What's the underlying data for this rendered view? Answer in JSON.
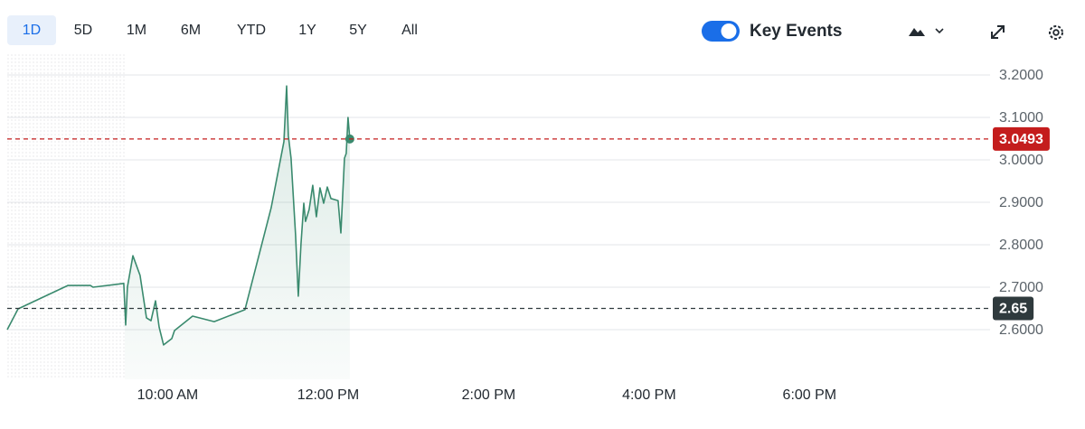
{
  "toolbar": {
    "ranges": [
      "1D",
      "5D",
      "1M",
      "6M",
      "YTD",
      "1Y",
      "5Y",
      "All"
    ],
    "selected": 0,
    "key_events": "Key Events"
  },
  "chart_data": {
    "type": "line",
    "color": "#3a8a6e",
    "x": [
      8.0,
      8.135,
      8.755,
      9.037,
      9.07,
      9.453,
      9.476,
      9.498,
      9.566,
      9.656,
      9.735,
      9.792,
      9.848,
      9.893,
      9.949,
      10.051,
      10.085,
      10.31,
      10.58,
      10.963,
      11.29,
      11.448,
      11.482,
      11.504,
      11.538,
      11.594,
      11.628,
      11.662,
      11.696,
      11.718,
      11.763,
      11.808,
      11.853,
      11.898,
      11.944,
      11.989,
      12.034,
      12.124,
      12.158,
      12.203,
      12.225,
      12.248,
      12.27
    ],
    "values": [
      2.6,
      2.649,
      2.704,
      2.704,
      2.7,
      2.709,
      2.611,
      2.7,
      2.774,
      2.728,
      2.628,
      2.621,
      2.668,
      2.606,
      2.564,
      2.579,
      2.598,
      2.632,
      2.619,
      2.647,
      2.887,
      3.043,
      3.174,
      3.057,
      3.004,
      2.823,
      2.679,
      2.802,
      2.898,
      2.855,
      2.883,
      2.94,
      2.866,
      2.934,
      2.898,
      2.936,
      2.909,
      2.904,
      2.828,
      3.004,
      3.015,
      3.1,
      3.0493
    ],
    "xlim": [
      8.0,
      20.25
    ],
    "ylim": [
      2.483,
      3.249
    ],
    "xticks": [
      {
        "value": 10,
        "label": "10:00 AM"
      },
      {
        "value": 12,
        "label": "12:00 PM"
      },
      {
        "value": 14,
        "label": "2:00 PM"
      },
      {
        "value": 16,
        "label": "4:00 PM"
      },
      {
        "value": 18,
        "label": "6:00 PM"
      }
    ],
    "yticks": [
      {
        "value": 2.6,
        "label": "2.6000"
      },
      {
        "value": 2.7,
        "label": "2.7000"
      },
      {
        "value": 2.8,
        "label": "2.8000"
      },
      {
        "value": 2.9,
        "label": "2.9000"
      },
      {
        "value": 3.0,
        "label": "3.0000"
      },
      {
        "value": 3.1,
        "label": "3.1000"
      },
      {
        "value": 3.2,
        "label": "3.2000"
      }
    ],
    "grid": true,
    "reference_lines": [
      {
        "value": 3.0493,
        "color": "#c41d1d"
      },
      {
        "value": 2.65,
        "color": "#2f3a3d"
      }
    ]
  }
}
